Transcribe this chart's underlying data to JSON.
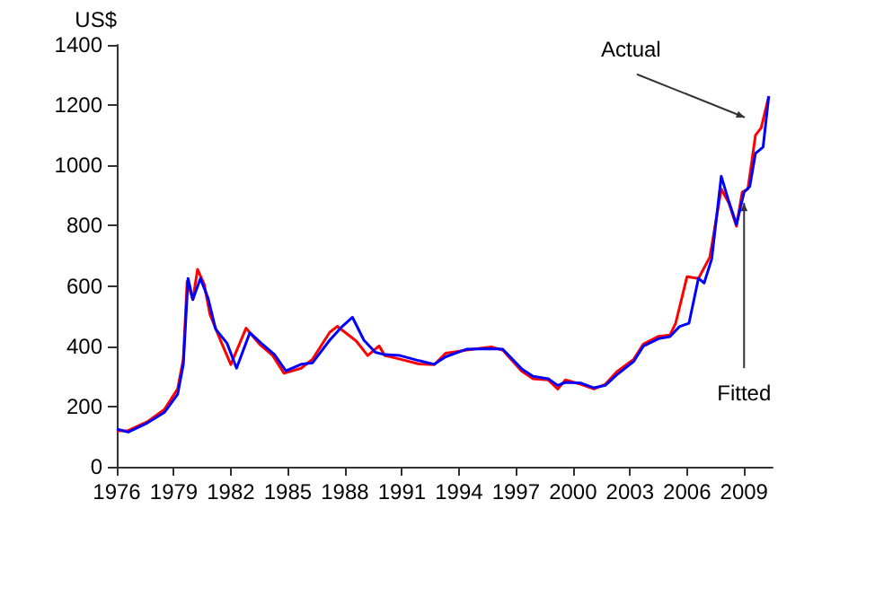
{
  "chart_data": {
    "type": "line",
    "ylabel": "US$",
    "xlim": [
      1976,
      2010.5
    ],
    "xticks": [
      1976,
      1979,
      1982,
      1985,
      1988,
      1991,
      1994,
      1997,
      2000,
      2003,
      2006,
      2009
    ],
    "ylim": [
      0,
      1400
    ],
    "yticks": [
      0,
      200,
      400,
      600,
      800,
      1000,
      1200,
      1400
    ],
    "grid": false,
    "marker": "none",
    "line_style": "solid",
    "series": [
      {
        "name": "Actual",
        "color": "#ff0000",
        "x": [
          1976,
          1976.6,
          1977.6,
          1978.5,
          1979.2,
          1979.5,
          1979.7,
          1980.0,
          1980.25,
          1980.6,
          1980.9,
          1981.4,
          1982.0,
          1982.8,
          1983.5,
          1984.2,
          1984.8,
          1985.7,
          1986.3,
          1987.2,
          1987.6,
          1988.6,
          1989.2,
          1989.8,
          1990.1,
          1990.9,
          1991.9,
          1992.7,
          1993.3,
          1994.4,
          1995.7,
          1996.3,
          1997.3,
          1997.9,
          1998.7,
          1999.2,
          1999.6,
          2000.4,
          2001.1,
          2001.7,
          2002.3,
          2003.2,
          2003.7,
          2004.5,
          2005.1,
          2005.4,
          2006.0,
          2006.6,
          2007.2,
          2007.8,
          2008.2,
          2008.6,
          2008.9,
          2009.2,
          2009.6,
          2009.9,
          2010.3
        ],
        "values": [
          119,
          120,
          149,
          190,
          258,
          357,
          615,
          555,
          655,
          605,
          506,
          428,
          339,
          460,
          407,
          369,
          310,
          327,
          357,
          446,
          466,
          417,
          369,
          401,
          369,
          357,
          341,
          339,
          377,
          387,
          398,
          387,
          317,
          292,
          288,
          258,
          288,
          274,
          258,
          274,
          315,
          357,
          407,
          433,
          437,
          476,
          631,
          625,
          696,
          922,
          875,
          798,
          911,
          922,
          1100,
          1125,
          1230
        ]
      },
      {
        "name": "Fitted",
        "color": "#0000ff",
        "x": [
          1976,
          1976.6,
          1977.6,
          1978.5,
          1979.2,
          1979.5,
          1979.75,
          1980.0,
          1980.4,
          1980.8,
          1981.2,
          1981.8,
          1982.3,
          1983.0,
          1983.6,
          1984.3,
          1984.9,
          1985.7,
          1986.3,
          1987.2,
          1987.8,
          1988.4,
          1989.0,
          1989.6,
          1990.1,
          1990.9,
          1991.9,
          1992.7,
          1993.3,
          1994.4,
          1995.7,
          1996.3,
          1997.3,
          1997.9,
          1998.7,
          1999.2,
          1999.6,
          2000.4,
          2001.1,
          2001.7,
          2002.3,
          2003.2,
          2003.7,
          2004.5,
          2005.1,
          2005.6,
          2006.1,
          2006.6,
          2006.9,
          2007.3,
          2007.8,
          2008.2,
          2008.6,
          2009.0,
          2009.3,
          2009.6,
          2010.0,
          2010.3
        ],
        "values": [
          125,
          115,
          145,
          180,
          240,
          340,
          625,
          555,
          625,
          560,
          457,
          410,
          327,
          445,
          410,
          372,
          318,
          340,
          345,
          420,
          462,
          496,
          420,
          380,
          372,
          369,
          352,
          340,
          365,
          390,
          392,
          390,
          325,
          300,
          292,
          270,
          280,
          278,
          262,
          270,
          305,
          350,
          400,
          425,
          432,
          465,
          476,
          625,
          610,
          690,
          964,
          880,
          804,
          911,
          930,
          1040,
          1061,
          1230
        ]
      }
    ]
  }
}
